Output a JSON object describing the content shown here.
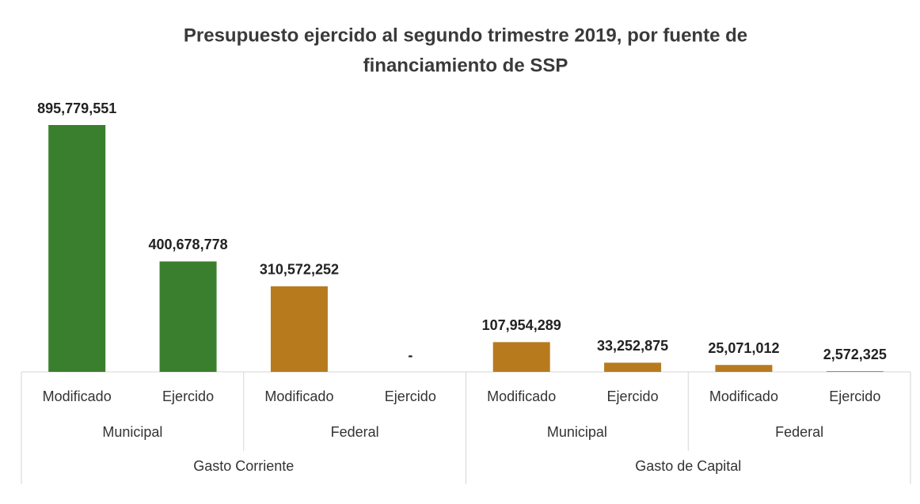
{
  "chart_data": {
    "type": "bar",
    "title": [
      "Presupuesto ejercido al segundo trimestre 2019, por fuente de",
      "financiamiento de SSP"
    ],
    "categories": [
      "Modificado",
      "Ejercido",
      "Modificado",
      "Ejercido",
      "Modificado",
      "Ejercido",
      "Modificado",
      "Ejercido"
    ],
    "category_groups": [
      "Municipal",
      "Federal",
      "Municipal",
      "Federal"
    ],
    "category_supergroups": [
      "Gasto Corriente",
      "Gasto de Capital"
    ],
    "values": [
      895779551,
      400678778,
      310572252,
      0,
      107954289,
      33252875,
      25071012,
      2572325
    ],
    "value_labels": [
      "895,779,551",
      "400,678,778",
      "310,572,252",
      "-",
      "107,954,289",
      "33,252,875",
      "25,071,012",
      "2,572,325"
    ],
    "colors": [
      "#3a7f2d",
      "#3a7f2d",
      "#b77b1e",
      "#b77b1e",
      "#b77b1e",
      "#b77b1e",
      "#b77b1e",
      "#b77b1e"
    ]
  }
}
